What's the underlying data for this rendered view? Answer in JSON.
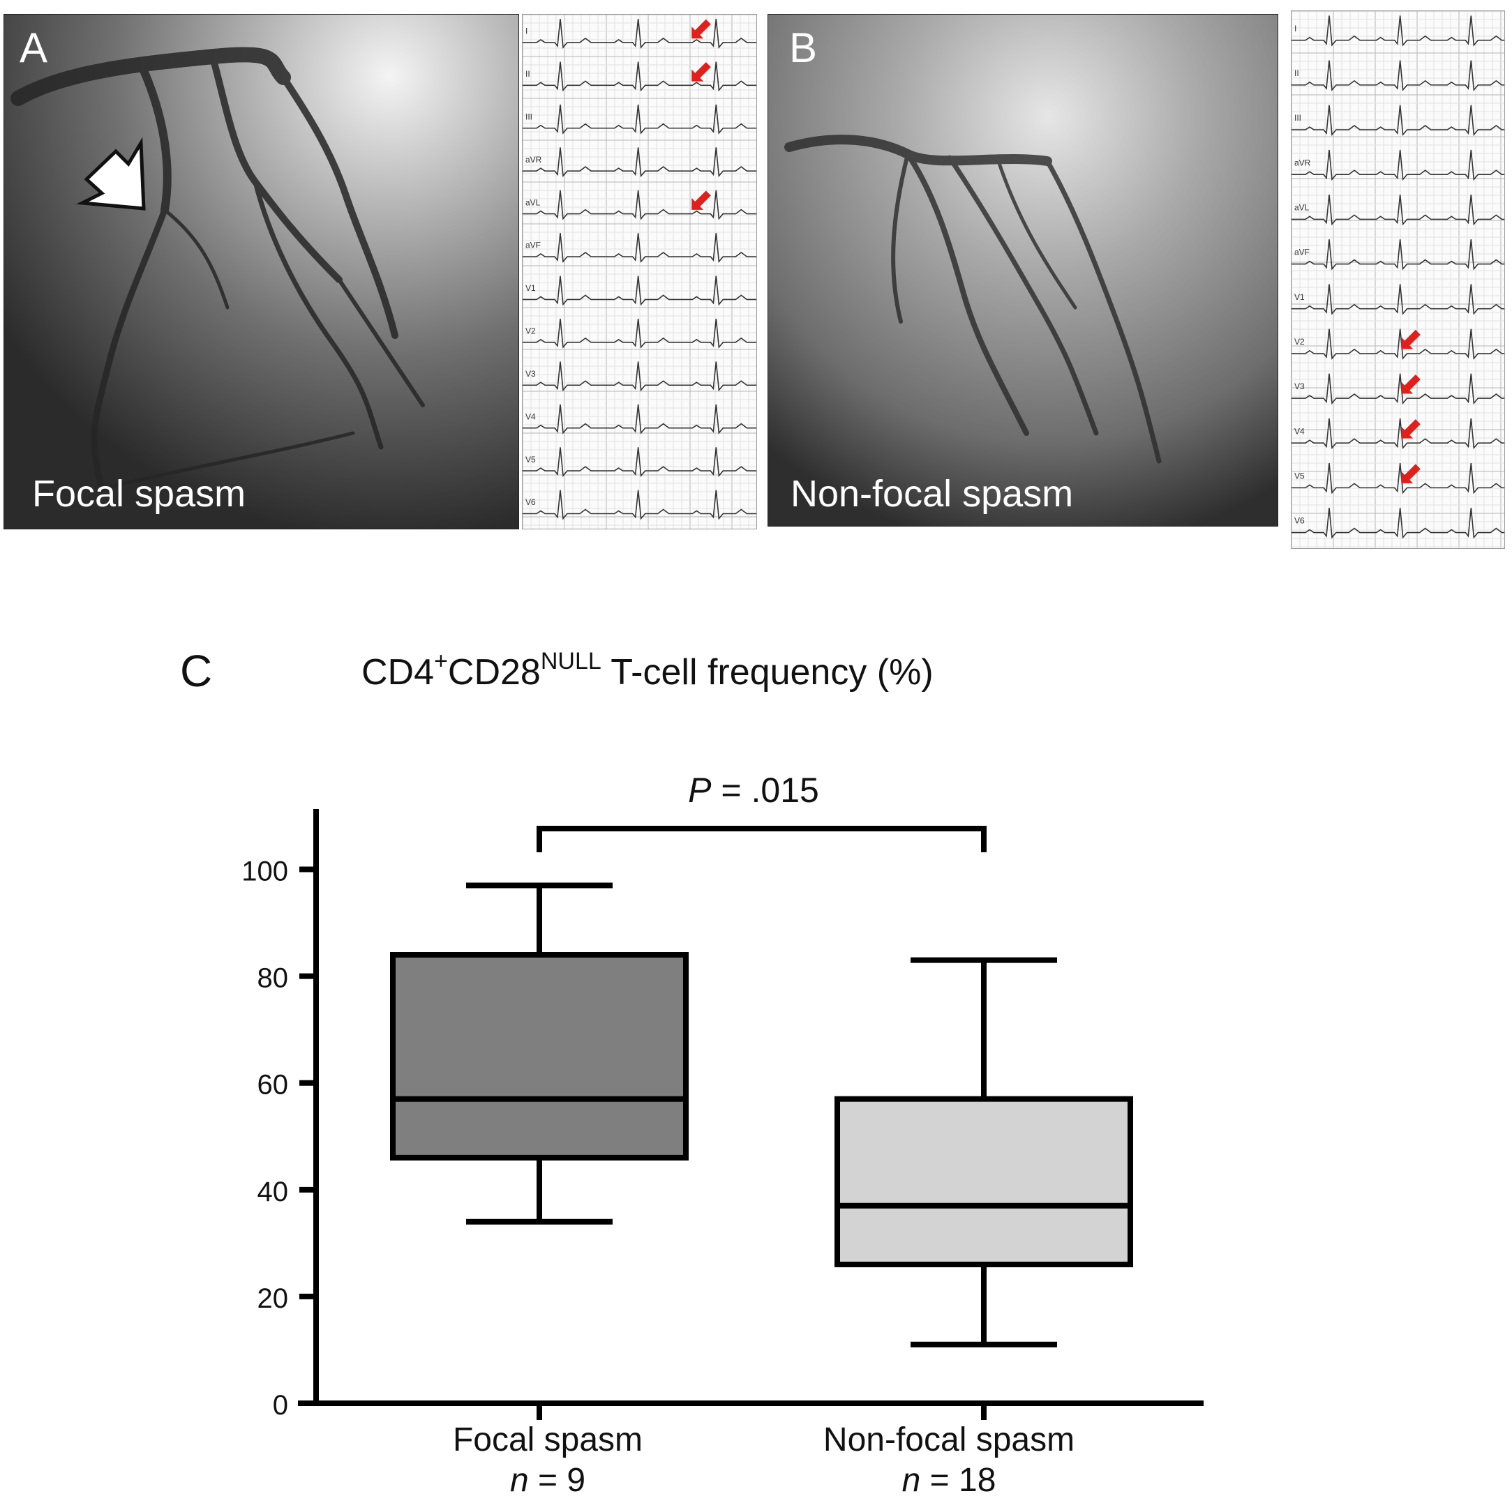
{
  "panel_a": {
    "letter": "A",
    "caption": "Focal spasm"
  },
  "panel_b": {
    "letter": "B",
    "caption": "Non-focal spasm"
  },
  "panel_c": {
    "letter": "C",
    "title_parts": {
      "t1": "CD4",
      "sup1": "+",
      "t2": "CD28",
      "sup2": "NULL",
      "t3": " T-cell frequency (%)"
    }
  },
  "ecg_a_leads": [
    "I",
    "II",
    "III",
    "aVR",
    "aVL",
    "aVF",
    "V1",
    "V2",
    "V3",
    "V4",
    "V5",
    "V6"
  ],
  "ecg_b_leads": [
    "I",
    "II",
    "III",
    "aVR",
    "aVL",
    "aVF",
    "V1",
    "V2",
    "V3",
    "V4",
    "V5",
    "V6"
  ],
  "colors": {
    "focal_box": "#7f7f7f",
    "nonfocal_box": "#d3d3d3",
    "ecg_arrow": "#e0201c",
    "angio_arrow_fill": "#ffffff"
  },
  "chart_data": {
    "type": "box",
    "ylim": [
      0,
      110
    ],
    "yticks": [
      0,
      20,
      40,
      60,
      80,
      100
    ],
    "ylabel": "",
    "categories": [
      {
        "label": "Focal spasm",
        "n_label": "n",
        "n_value": "= 9",
        "min": 34,
        "q1": 46,
        "median": 57,
        "q3": 84,
        "max": 97
      },
      {
        "label": "Non-focal spasm",
        "n_label": "n",
        "n_value": "= 18",
        "min": 11,
        "q1": 26,
        "median": 37,
        "q3": 57,
        "max": 83
      }
    ],
    "significance": {
      "p_label": "P",
      "p_value": "= .015"
    }
  }
}
